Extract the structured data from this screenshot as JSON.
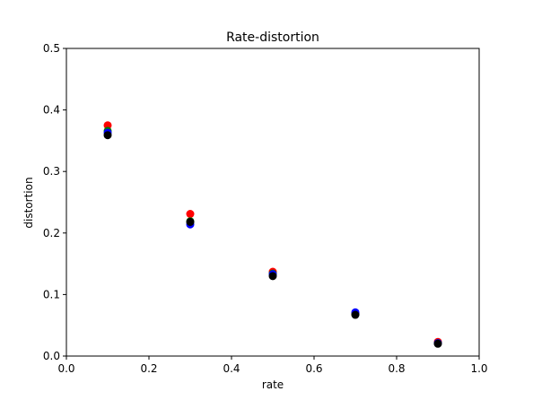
{
  "chart_data": {
    "type": "scatter",
    "title": "Rate-distortion",
    "xlabel": "rate",
    "ylabel": "distortion",
    "xlim": [
      0.0,
      1.0
    ],
    "ylim": [
      0.0,
      0.5
    ],
    "xticks": [
      "0.0",
      "0.2",
      "0.4",
      "0.6",
      "0.8",
      "1.0"
    ],
    "yticks": [
      "0.0",
      "0.1",
      "0.2",
      "0.3",
      "0.4",
      "0.5"
    ],
    "grid": false,
    "legend": "none",
    "series": [
      {
        "color": "#ff0000",
        "x": [
          0.1,
          0.3,
          0.5,
          0.7,
          0.9
        ],
        "y": [
          0.375,
          0.231,
          0.137,
          0.069,
          0.023
        ]
      },
      {
        "color": "#008000",
        "x": [
          0.1,
          0.3,
          0.5,
          0.7,
          0.9
        ],
        "y": [
          0.366,
          0.219,
          0.134,
          0.068,
          0.021
        ]
      },
      {
        "color": "#0000ff",
        "x": [
          0.1,
          0.3,
          0.5,
          0.7,
          0.9
        ],
        "y": [
          0.363,
          0.214,
          0.133,
          0.071,
          0.021
        ]
      },
      {
        "color": "#000000",
        "x": [
          0.1,
          0.3,
          0.5,
          0.7,
          0.9
        ],
        "y": [
          0.359,
          0.218,
          0.13,
          0.067,
          0.02
        ]
      }
    ]
  }
}
